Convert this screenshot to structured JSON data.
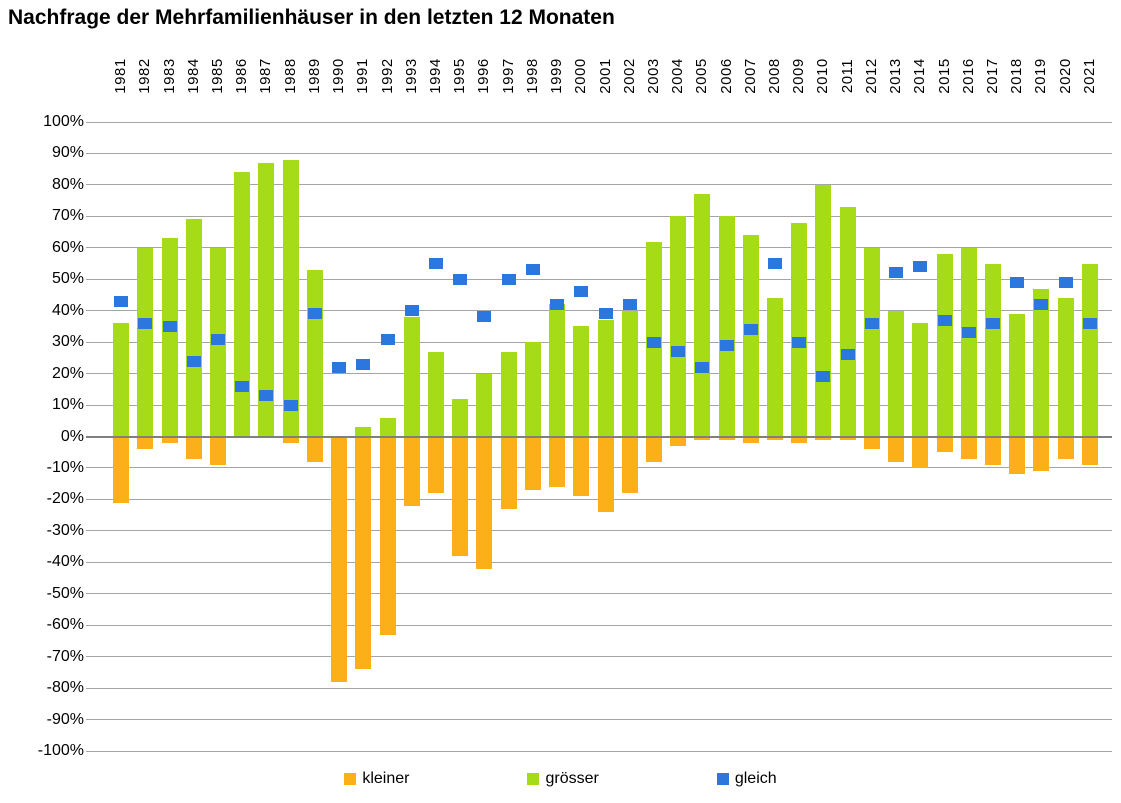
{
  "title": "Nachfrage der Mehrfamilienhäuser in den letzten 12 Monaten",
  "legend": {
    "position": "bottom"
  },
  "colors": {
    "kleiner": "#FBB019",
    "groesser": "#A5DC17",
    "gleich": "#2C77DE",
    "gridline": "#A5A5A5",
    "zero_line": "#7F7F7F",
    "text": "#000000",
    "background": "#FFFFFF"
  },
  "chart_data": {
    "type": "bar",
    "title": "Nachfrage der Mehrfamilienhäuser in den letzten 12 Monaten",
    "xlabel": "",
    "ylabel": "",
    "ylim": [
      -100,
      100
    ],
    "ytick_step": 10,
    "grid": true,
    "legend_position": "bottom",
    "y_tick_labels": [
      "100%",
      "90%",
      "80%",
      "70%",
      "60%",
      "50%",
      "40%",
      "30%",
      "20%",
      "10%",
      "0%",
      "-10%",
      "-20%",
      "-30%",
      "-40%",
      "-50%",
      "-60%",
      "-70%",
      "-80%",
      "-90%",
      "-100%"
    ],
    "categories": [
      "1981",
      "1982",
      "1983",
      "1984",
      "1985",
      "1986",
      "1987",
      "1988",
      "1989",
      "1990",
      "1991",
      "1992",
      "1993",
      "1994",
      "1995",
      "1996",
      "1997",
      "1998",
      "1999",
      "2000",
      "2001",
      "2002",
      "2003",
      "2004",
      "2005",
      "2006",
      "2007",
      "2008",
      "2009",
      "2010",
      "2011",
      "2012",
      "2013",
      "2014",
      "2015",
      "2016",
      "2017",
      "2018",
      "2019",
      "2020",
      "2021"
    ],
    "series": [
      {
        "name": "kleiner",
        "render": "bar",
        "color": "#FBB019",
        "values": [
          -21,
          -4,
          -2,
          -7,
          -9,
          0,
          0,
          -2,
          -8,
          -78,
          -74,
          -63,
          -22,
          -18,
          -38,
          -42,
          -23,
          -17,
          -16,
          -19,
          -24,
          -18,
          -8,
          -3,
          -1,
          -1,
          -2,
          -1,
          -2,
          -1,
          -1,
          -4,
          -8,
          -10,
          -5,
          -7,
          -9,
          -12,
          -11,
          -7,
          -9
        ]
      },
      {
        "name": "grösser",
        "render": "bar",
        "color": "#A5DC17",
        "values": [
          36,
          60,
          63,
          69,
          60,
          84,
          87,
          88,
          53,
          0,
          3,
          6,
          38,
          27,
          12,
          20,
          27,
          30,
          42,
          35,
          37,
          40,
          62,
          70,
          77,
          70,
          64,
          44,
          68,
          80,
          73,
          60,
          40,
          36,
          58,
          60,
          55,
          39,
          47,
          44,
          55
        ]
      },
      {
        "name": "gleich",
        "render": "square-marker",
        "color": "#2C77DE",
        "values": [
          43,
          36,
          35,
          24,
          31,
          16,
          13,
          10,
          39,
          22,
          23,
          31,
          40,
          55,
          50,
          38,
          50,
          53,
          42,
          46,
          39,
          42,
          30,
          27,
          22,
          29,
          34,
          55,
          30,
          19,
          26,
          36,
          52,
          54,
          37,
          33,
          36,
          49,
          42,
          49,
          36
        ]
      }
    ]
  }
}
